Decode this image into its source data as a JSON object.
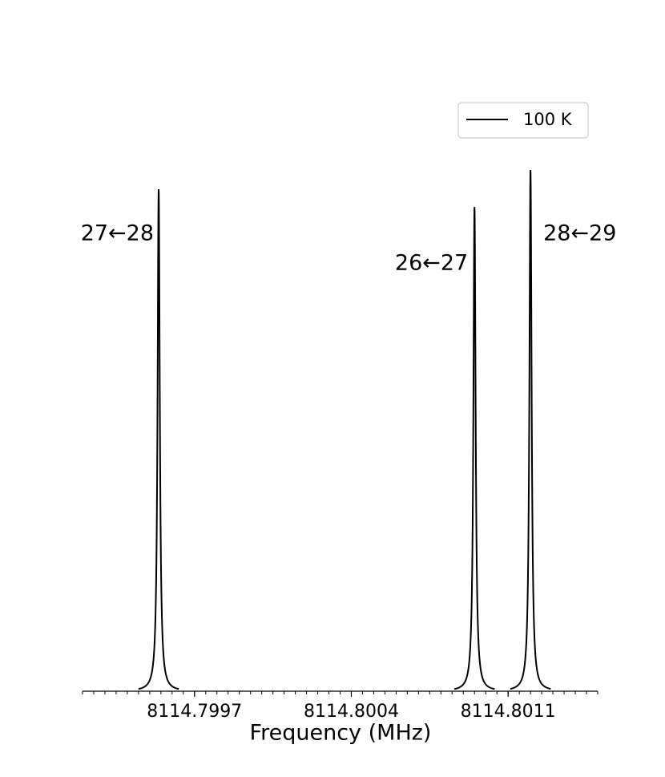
{
  "chart_data": {
    "type": "line",
    "xlabel": "Frequency (MHz)",
    "xlim": [
      8114.7992,
      8114.8015
    ],
    "xticks": [
      8114.7997,
      8114.8004,
      8114.8011
    ],
    "xminorticks": [
      8114.7992,
      8114.79925,
      8114.7993,
      8114.79935,
      8114.7994,
      8114.79945,
      8114.7995,
      8114.79955,
      8114.7996,
      8114.79965,
      8114.7997,
      8114.79975,
      8114.7998,
      8114.79985,
      8114.7999,
      8114.79995,
      8114.8,
      8114.80005,
      8114.8001,
      8114.80015,
      8114.8002,
      8114.80025,
      8114.8003,
      8114.80035,
      8114.8004,
      8114.80045,
      8114.8005,
      8114.80055,
      8114.8006,
      8114.80065,
      8114.8007,
      8114.80075,
      8114.8008,
      8114.80085,
      8114.8009,
      8114.80095,
      8114.801,
      8114.80105,
      8114.8011,
      8114.80115,
      8114.8012,
      8114.80125,
      8114.8013,
      8114.80135,
      8114.8014,
      8114.80145,
      8114.8015
    ],
    "ylim": [
      0,
      1.05
    ],
    "hwhm": 6e-06,
    "series": [
      {
        "name": "100 K",
        "color": "#000000",
        "x": [
          8114.79954,
          8114.80095,
          8114.8012
        ],
        "values": [
          0.963,
          0.929,
          1.0
        ]
      }
    ],
    "annotations": [
      "27←28",
      "26←27",
      "28←29"
    ],
    "legend": "upper right"
  }
}
